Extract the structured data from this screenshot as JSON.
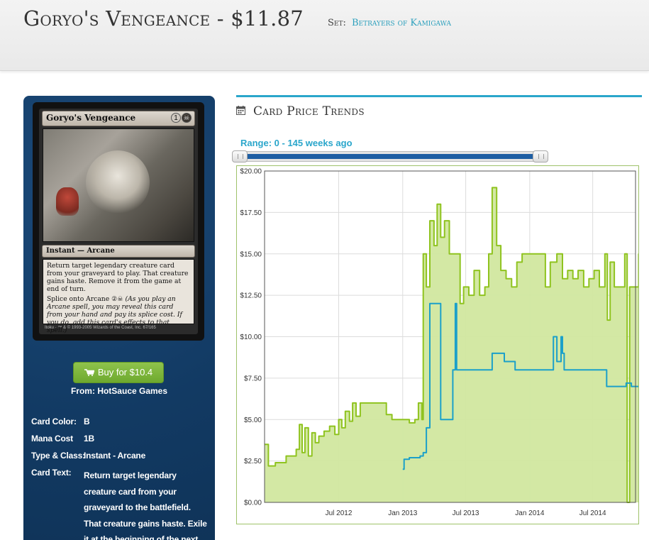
{
  "header": {
    "title": "Goryo's Vengeance - $11.87",
    "set_label": "Set:",
    "set_name": "Betrayers of Kamigawa"
  },
  "card": {
    "name": "Goryo's Vengeance",
    "mana_generic": "1",
    "type_line": "Instant — Arcane",
    "rules_text": "Return target legendary creature card from your graveyard to play. That creature gains haste. Remove it from the game at end of turn.",
    "splice_text": "Splice onto Arcane",
    "splice_reminder": "(As you play an Arcane spell, you may reveal this card from your hand and pay its splice cost. If you do, add this card's effects to that spell.)",
    "artist": "Itoku",
    "footer": "™ & © 1993-2005 Wizards of the Coast, Inc. 67/165"
  },
  "purchase": {
    "buy_label": "Buy for $10.4",
    "from_label": "From:",
    "store": "HotSauce Games"
  },
  "details": [
    {
      "key": "Card Color:",
      "value": "B"
    },
    {
      "key": "Mana Cost",
      "value": "1B"
    },
    {
      "key": "Type & Class:",
      "value": "Instant - Arcane"
    },
    {
      "key": "Card Text:",
      "value": "Return target legendary creature card from your graveyard to the battlefield. That creature gains haste. Exile it at the beginning of the next end"
    }
  ],
  "trends": {
    "heading": "Card Price Trends",
    "range_label": "Range: 0 - 145 weeks ago",
    "range_start_weeks": 0,
    "range_end_weeks": 145
  },
  "colors": {
    "accent": "#2aa6cb",
    "green_series": "#8fc31f",
    "green_fill": "#d1e79f",
    "blue_series": "#1ba0c9",
    "sidebar": "#133c66"
  },
  "chart_data": {
    "type": "line",
    "ylim": [
      0,
      20
    ],
    "yticks": [
      "$0.00",
      "$2.50",
      "$5.00",
      "$7.50",
      "$10.00",
      "$12.50",
      "$15.00",
      "$17.50",
      "$20.00"
    ],
    "x_range": [
      "2011-12",
      "2014-11"
    ],
    "xticks": [
      "Jul 2012",
      "Jan 2013",
      "Jul 2013",
      "Jan 2014",
      "Jul 2014"
    ],
    "series": [
      {
        "color": "#8fc31f",
        "filled": true,
        "points": [
          [
            "2011-12-01",
            3.5
          ],
          [
            "2011-12-12",
            2.2
          ],
          [
            "2012-01-01",
            2.4
          ],
          [
            "2012-02-01",
            2.8
          ],
          [
            "2012-03-01",
            3.2
          ],
          [
            "2012-03-10",
            4.7
          ],
          [
            "2012-03-18",
            3.0
          ],
          [
            "2012-03-26",
            4.5
          ],
          [
            "2012-04-05",
            2.8
          ],
          [
            "2012-04-15",
            4.2
          ],
          [
            "2012-04-25",
            3.6
          ],
          [
            "2012-05-05",
            4.0
          ],
          [
            "2012-05-20",
            4.3
          ],
          [
            "2012-06-05",
            4.6
          ],
          [
            "2012-06-20",
            4.1
          ],
          [
            "2012-07-01",
            5.0
          ],
          [
            "2012-07-10",
            4.5
          ],
          [
            "2012-07-20",
            5.5
          ],
          [
            "2012-08-01",
            4.9
          ],
          [
            "2012-08-10",
            6.0
          ],
          [
            "2012-08-20",
            5.2
          ],
          [
            "2012-09-01",
            6.0
          ],
          [
            "2012-10-01",
            6.0
          ],
          [
            "2012-11-01",
            6.0
          ],
          [
            "2012-11-15",
            5.3
          ],
          [
            "2012-12-01",
            5.0
          ],
          [
            "2013-01-01",
            5.0
          ],
          [
            "2013-01-20",
            4.8
          ],
          [
            "2013-02-05",
            5.0
          ],
          [
            "2013-02-15",
            6.0
          ],
          [
            "2013-02-25",
            5.0
          ],
          [
            "2013-03-01",
            15.0
          ],
          [
            "2013-03-10",
            13.0
          ],
          [
            "2013-03-20",
            17.0
          ],
          [
            "2013-04-01",
            15.5
          ],
          [
            "2013-04-10",
            18.0
          ],
          [
            "2013-04-20",
            16.0
          ],
          [
            "2013-05-01",
            17.0
          ],
          [
            "2013-05-15",
            15.0
          ],
          [
            "2013-06-01",
            15.0
          ],
          [
            "2013-06-15",
            12.0
          ],
          [
            "2013-06-25",
            13.0
          ],
          [
            "2013-07-10",
            12.5
          ],
          [
            "2013-07-25",
            14.0
          ],
          [
            "2013-08-10",
            12.5
          ],
          [
            "2013-08-25",
            13.0
          ],
          [
            "2013-09-05",
            15.0
          ],
          [
            "2013-09-15",
            19.0
          ],
          [
            "2013-09-28",
            15.5
          ],
          [
            "2013-10-10",
            14.0
          ],
          [
            "2013-10-25",
            13.5
          ],
          [
            "2013-11-10",
            13.0
          ],
          [
            "2013-11-25",
            14.5
          ],
          [
            "2013-12-10",
            15.0
          ],
          [
            "2014-01-10",
            15.0
          ],
          [
            "2014-02-01",
            15.0
          ],
          [
            "2014-02-15",
            13.0
          ],
          [
            "2014-03-01",
            14.5
          ],
          [
            "2014-03-20",
            15.0
          ],
          [
            "2014-04-05",
            13.5
          ],
          [
            "2014-04-20",
            14.0
          ],
          [
            "2014-05-05",
            13.5
          ],
          [
            "2014-05-20",
            14.0
          ],
          [
            "2014-06-05",
            13.0
          ],
          [
            "2014-06-20",
            13.5
          ],
          [
            "2014-07-05",
            14.0
          ],
          [
            "2014-07-20",
            13.0
          ],
          [
            "2014-08-05",
            15.0
          ],
          [
            "2014-08-12",
            11.0
          ],
          [
            "2014-08-20",
            14.5
          ],
          [
            "2014-09-01",
            13.0
          ],
          [
            "2014-09-20",
            13.0
          ],
          [
            "2014-10-01",
            15.0
          ],
          [
            "2014-10-08",
            0.0
          ],
          [
            "2014-10-15",
            13.0
          ],
          [
            "2014-11-01",
            13.0
          ],
          [
            "2014-11-10",
            15.0
          ],
          [
            "2014-11-20",
            12.0
          ]
        ]
      },
      {
        "color": "#1ba0c9",
        "filled": false,
        "points": [
          [
            "2013-01-01",
            2.0
          ],
          [
            "2013-01-05",
            2.6
          ],
          [
            "2013-01-20",
            2.7
          ],
          [
            "2013-02-20",
            2.8
          ],
          [
            "2013-03-01",
            3.0
          ],
          [
            "2013-03-10",
            4.5
          ],
          [
            "2013-03-20",
            12.0
          ],
          [
            "2013-04-15",
            12.0
          ],
          [
            "2013-04-20",
            5.0
          ],
          [
            "2013-05-20",
            5.0
          ],
          [
            "2013-05-25",
            8.0
          ],
          [
            "2013-06-01",
            12.0
          ],
          [
            "2013-06-05",
            8.0
          ],
          [
            "2013-08-01",
            8.0
          ],
          [
            "2013-09-01",
            8.0
          ],
          [
            "2013-09-15",
            9.0
          ],
          [
            "2013-10-15",
            9.0
          ],
          [
            "2013-10-20",
            8.5
          ],
          [
            "2013-11-10",
            8.5
          ],
          [
            "2013-11-20",
            8.0
          ],
          [
            "2014-03-01",
            8.0
          ],
          [
            "2014-03-10",
            10.0
          ],
          [
            "2014-03-20",
            8.5
          ],
          [
            "2014-04-01",
            10.0
          ],
          [
            "2014-04-05",
            9.0
          ],
          [
            "2014-04-10",
            8.0
          ],
          [
            "2014-07-01",
            8.0
          ],
          [
            "2014-08-01",
            8.0
          ],
          [
            "2014-08-10",
            7.0
          ],
          [
            "2014-10-01",
            7.0
          ],
          [
            "2014-10-05",
            7.2
          ],
          [
            "2014-10-20",
            7.0
          ],
          [
            "2014-11-20",
            7.0
          ]
        ]
      }
    ]
  }
}
